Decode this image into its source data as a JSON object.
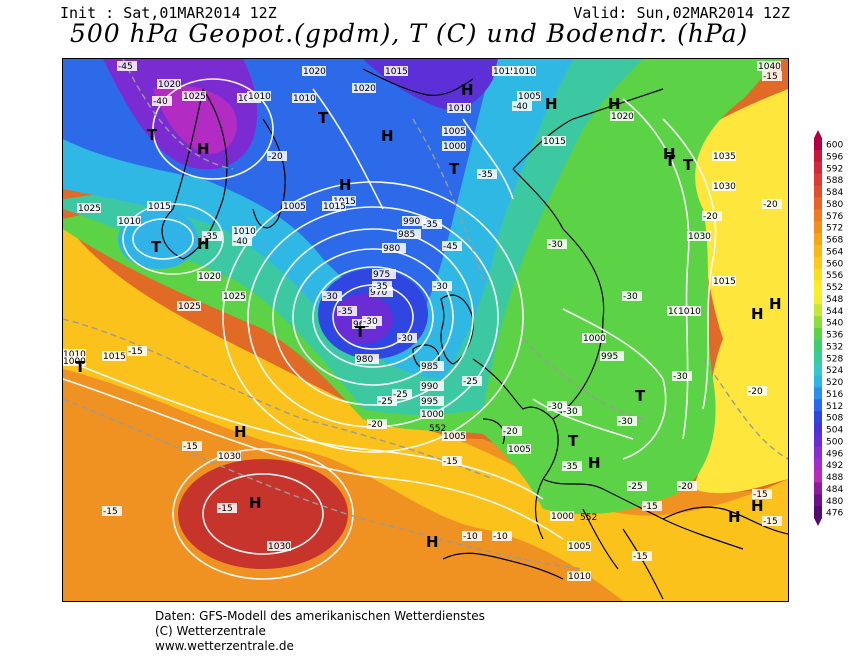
{
  "header": {
    "init": "Init : Sat,01MAR2014 12Z",
    "valid": "Valid: Sun,02MAR2014 12Z",
    "title": "500 hPa Geopot.(gpdm), T (C) und Bodendr. (hPa)"
  },
  "footer": {
    "line1": "Daten: GFS-Modell des amerikanischen Wetterdienstes",
    "line2": "(C) Wetterzentrale",
    "line3": "www.wetterzentrale.de"
  },
  "legend": {
    "values": [
      "600",
      "596",
      "592",
      "588",
      "584",
      "580",
      "576",
      "572",
      "568",
      "564",
      "560",
      "556",
      "552",
      "548",
      "544",
      "540",
      "536",
      "532",
      "528",
      "524",
      "520",
      "516",
      "512",
      "508",
      "504",
      "500",
      "496",
      "492",
      "488",
      "484",
      "480",
      "476"
    ],
    "colors": [
      "#b00040",
      "#c4183c",
      "#d2283a",
      "#dc3c34",
      "#e0502c",
      "#e86428",
      "#f07a22",
      "#f48e1c",
      "#f8a418",
      "#fab818",
      "#fcca18",
      "#fedc20",
      "#ffee28",
      "#f4f030",
      "#c4e838",
      "#8cde40",
      "#5ad446",
      "#40cc70",
      "#38cc9c",
      "#38c8c8",
      "#30b4e8",
      "#2c8ff0",
      "#2c68ec",
      "#3046e0",
      "#4a34d8",
      "#6a2cd4",
      "#8a2cd0",
      "#a42cc8",
      "#b82cbc",
      "#8c1c9c",
      "#6c108c",
      "#540a70"
    ]
  },
  "map_labels": {
    "pressure": [
      "1020",
      "1010",
      "1015",
      "1020",
      "1025",
      "1010",
      "1015",
      "1010",
      "1010",
      "1005",
      "1000",
      "1015",
      "1025",
      "1020",
      "1005",
      "1015",
      "1010",
      "990",
      "985",
      "980",
      "975",
      "970",
      "965",
      "980",
      "985",
      "990",
      "995",
      "1000",
      "1005",
      "1005",
      "1000",
      "1005",
      "1010",
      "1015",
      "1020",
      "1025",
      "1030",
      "1035",
      "1030",
      "1040",
      "1010",
      "1030",
      "1030",
      "1010",
      "1000",
      "995",
      "1015",
      "1010",
      "1025",
      "1015",
      "1010",
      "1000",
      "1005",
      "1015",
      "1010",
      "1020"
    ],
    "temperature": [
      "-45",
      "-40",
      "-45",
      "-40",
      "-35",
      "-40",
      "-35",
      "-30",
      "-35",
      "-30",
      "-30",
      "-35",
      "-30",
      "-25",
      "-25",
      "-20",
      "-20",
      "-20",
      "-15",
      "-15",
      "-15",
      "-15",
      "-15",
      "-10",
      "-10",
      "-15",
      "-15",
      "-15",
      "-15",
      "-30",
      "-30",
      "-30",
      "-30",
      "-30",
      "-35",
      "-25",
      "-20",
      "-20",
      "-20",
      "-35",
      "-30",
      "-25",
      "-20",
      "-15"
    ],
    "highs": [
      "H",
      "H",
      "H",
      "H",
      "H",
      "H",
      "H",
      "H",
      "H",
      "H",
      "H",
      "H",
      "H",
      "H",
      "H",
      "H"
    ],
    "lows": [
      "T",
      "T",
      "T",
      "T",
      "T",
      "T",
      "T",
      "T",
      "T",
      "T"
    ],
    "small_values": [
      "552",
      "552"
    ]
  }
}
